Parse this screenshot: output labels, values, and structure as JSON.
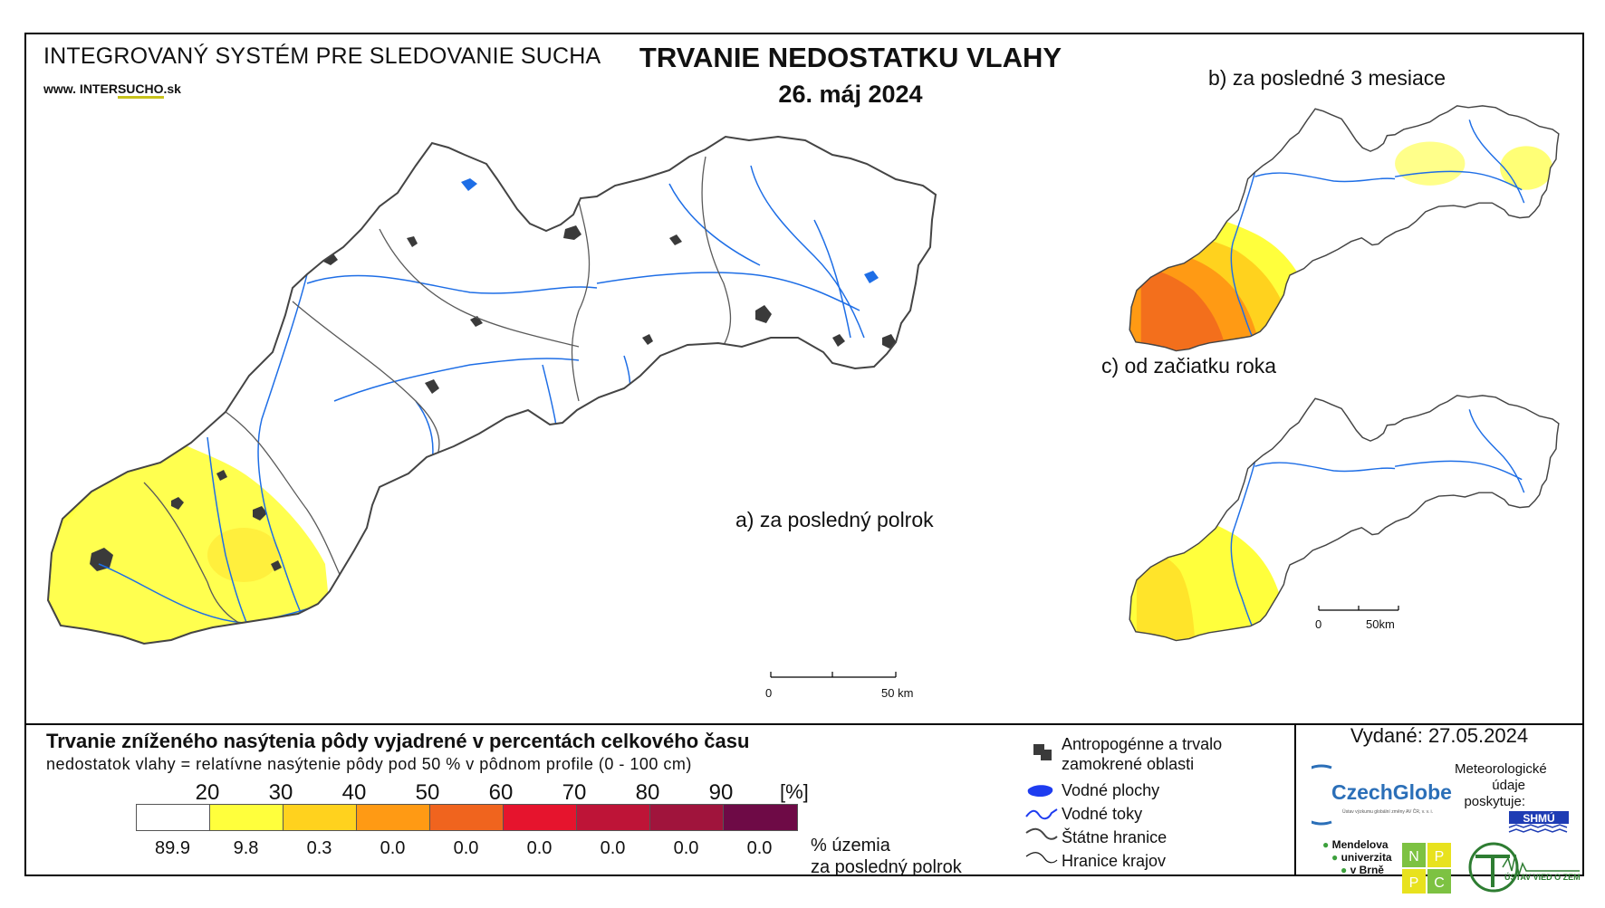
{
  "header": {
    "system_title": "INTEGROVANÝ SYSTÉM PRE SLEDOVANIE SUCHA",
    "url_prefix": "www. INTER",
    "url_accent": "SUCHO",
    "url_suffix": ".sk",
    "title": "TRVANIE NEDOSTATKU VLAHY",
    "date": "26. máj 2024"
  },
  "panels": {
    "a_label": "a) za posledný polrok",
    "b_label": "b) za posledné 3 mesiace",
    "c_label": "c) od začiatku roka"
  },
  "scale_bars": {
    "main": {
      "start": "0",
      "end": "50 km"
    },
    "small": {
      "start": "0",
      "end": "50km"
    }
  },
  "legend": {
    "title": "Trvanie zníženého nasýtenia pôdy vyjadrené v percentách celkového času",
    "subtitle": "nedostatok vlahy = relatívne nasýtenie pôdy pod 50 % v pôdnom profile (0 - 100 cm)",
    "thresholds": [
      "20",
      "30",
      "40",
      "50",
      "60",
      "70",
      "80",
      "90"
    ],
    "unit": "[%]",
    "colors": [
      "#ffffff",
      "#ffff3c",
      "#ffd21e",
      "#ff9a14",
      "#f0641e",
      "#e6142d",
      "#be1437",
      "#a0143c",
      "#6e0a46"
    ],
    "percentages": [
      "89.9",
      "9.8",
      "0.3",
      "0.0",
      "0.0",
      "0.0",
      "0.0",
      "0.0",
      "0.0"
    ],
    "pct_note_1": "% územia",
    "pct_note_2": "za posledný polrok"
  },
  "symbols": {
    "urban_1": "Antropogénne a trvalo",
    "urban_2": "zamokrené oblasti",
    "water_bodies": "Vodné plochy",
    "rivers": "Vodné toky",
    "state_border": "Štátne hranice",
    "region_border": "Hranice krajov"
  },
  "issued": "Vydané: 27.05.2024",
  "logos": {
    "czechglobe": "CzechGlobe",
    "czechglobe_sub": "Ústav výzkumu globální změny AV ČR, v. v. i.",
    "met_1": "Meteorologické",
    "met_2": "údaje",
    "met_3": "poskytuje:",
    "shmu": "SHMÚ",
    "mendel_1": "Mendelova",
    "mendel_2": "univerzita",
    "mendel_3": "v Brně",
    "nppc": [
      "N",
      "P",
      "P",
      "C"
    ],
    "uvz": "ÚSTAV VIED O ZEMI"
  }
}
